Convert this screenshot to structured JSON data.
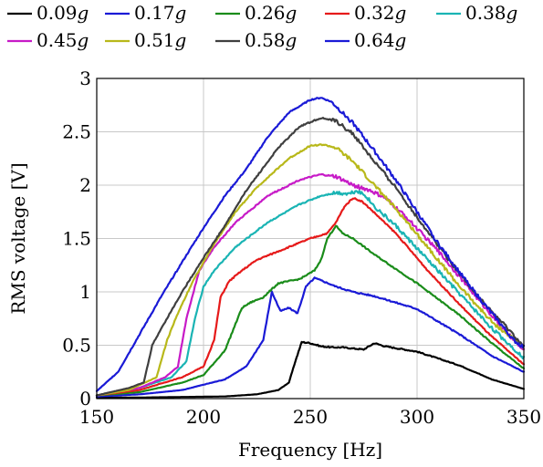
{
  "chart_data": {
    "type": "line",
    "title": "",
    "xlabel": "Frequency [Hz]",
    "ylabel": "RMS voltage [V]",
    "xlim": [
      150,
      350
    ],
    "ylim": [
      0,
      3
    ],
    "x_ticks": [
      150,
      200,
      250,
      300,
      350
    ],
    "y_ticks": [
      0,
      0.5,
      1,
      1.5,
      2,
      2.5,
      3
    ],
    "x_tick_labels": [
      "150",
      "200",
      "250",
      "300",
      "350"
    ],
    "y_tick_labels": [
      "0",
      "0.5",
      "1",
      "1.5",
      "2",
      "2.5",
      "3"
    ],
    "grid": true,
    "legend_position": "top",
    "series": [
      {
        "name": "0.09g",
        "legend_value": "0.09",
        "legend_unit": "g",
        "color": "#000000",
        "x": [
          150,
          170,
          190,
          210,
          225,
          235,
          240,
          243,
          246,
          250,
          255,
          260,
          265,
          270,
          275,
          280,
          285,
          300,
          320,
          335,
          350
        ],
        "y": [
          0.01,
          0.01,
          0.015,
          0.02,
          0.04,
          0.08,
          0.15,
          0.35,
          0.53,
          0.52,
          0.49,
          0.48,
          0.48,
          0.47,
          0.46,
          0.52,
          0.49,
          0.44,
          0.31,
          0.18,
          0.09
        ]
      },
      {
        "name": "0.17g",
        "legend_value": "0.17",
        "legend_unit": "g",
        "color": "#1a1ad6",
        "x": [
          150,
          170,
          190,
          210,
          220,
          228,
          232,
          236,
          240,
          244,
          248,
          252,
          256,
          262,
          270,
          280,
          300,
          320,
          335,
          350
        ],
        "y": [
          0.02,
          0.04,
          0.08,
          0.18,
          0.3,
          0.55,
          1.0,
          0.82,
          0.85,
          0.8,
          1.05,
          1.13,
          1.1,
          1.05,
          1.0,
          0.96,
          0.84,
          0.6,
          0.4,
          0.25
        ]
      },
      {
        "name": "0.26g",
        "legend_value": "0.26",
        "legend_unit": "g",
        "color": "#1a8c1a",
        "x": [
          150,
          170,
          190,
          200,
          210,
          215,
          218,
          222,
          228,
          235,
          245,
          252,
          255,
          258,
          262,
          265,
          270,
          280,
          300,
          320,
          335,
          350
        ],
        "y": [
          0.03,
          0.06,
          0.15,
          0.22,
          0.45,
          0.7,
          0.85,
          0.9,
          0.95,
          1.08,
          1.12,
          1.2,
          1.3,
          1.5,
          1.62,
          1.55,
          1.5,
          1.35,
          1.08,
          0.78,
          0.52,
          0.28
        ]
      },
      {
        "name": "0.32g",
        "legend_value": "0.32",
        "legend_unit": "g",
        "color": "#e61a1a",
        "x": [
          150,
          170,
          190,
          200,
          205,
          208,
          212,
          218,
          225,
          240,
          250,
          258,
          262,
          266,
          270,
          274,
          278,
          290,
          305,
          320,
          335,
          350
        ],
        "y": [
          0.03,
          0.08,
          0.2,
          0.3,
          0.55,
          0.95,
          1.1,
          1.2,
          1.3,
          1.42,
          1.5,
          1.55,
          1.65,
          1.8,
          1.88,
          1.85,
          1.78,
          1.55,
          1.2,
          0.88,
          0.58,
          0.32
        ]
      },
      {
        "name": "0.38g",
        "legend_value": "0.38",
        "legend_unit": "g",
        "color": "#1ab4b4",
        "x": [
          150,
          170,
          185,
          192,
          196,
          200,
          205,
          215,
          230,
          245,
          255,
          262,
          268,
          272,
          276,
          280,
          290,
          305,
          320,
          335,
          350
        ],
        "y": [
          0.03,
          0.1,
          0.2,
          0.35,
          0.75,
          1.05,
          1.2,
          1.42,
          1.65,
          1.82,
          1.9,
          1.93,
          1.92,
          1.95,
          1.9,
          1.8,
          1.62,
          1.3,
          0.98,
          0.66,
          0.38
        ]
      },
      {
        "name": "0.45g",
        "legend_value": "0.45",
        "legend_unit": "g",
        "color": "#c71ac7",
        "x": [
          150,
          170,
          182,
          188,
          192,
          198,
          205,
          215,
          230,
          245,
          255,
          262,
          270,
          278,
          285,
          295,
          310,
          325,
          340,
          350
        ],
        "y": [
          0.03,
          0.1,
          0.2,
          0.3,
          0.75,
          1.2,
          1.42,
          1.65,
          1.9,
          2.05,
          2.1,
          2.08,
          2.0,
          1.95,
          1.88,
          1.7,
          1.38,
          1.02,
          0.66,
          0.45
        ]
      },
      {
        "name": "0.51g",
        "legend_value": "0.51",
        "legend_unit": "g",
        "color": "#b8b81a",
        "x": [
          150,
          165,
          178,
          183,
          188,
          195,
          205,
          215,
          225,
          240,
          250,
          256,
          262,
          270,
          280,
          290,
          305,
          320,
          335,
          350
        ],
        "y": [
          0.03,
          0.08,
          0.2,
          0.55,
          0.8,
          1.1,
          1.45,
          1.75,
          1.98,
          2.25,
          2.37,
          2.38,
          2.35,
          2.22,
          2.0,
          1.78,
          1.42,
          1.05,
          0.72,
          0.48
        ]
      },
      {
        "name": "0.58g",
        "legend_value": "0.58",
        "legend_unit": "g",
        "color": "#3f3f3f",
        "x": [
          150,
          165,
          172,
          176,
          180,
          190,
          200,
          210,
          220,
          235,
          245,
          255,
          262,
          270,
          280,
          290,
          300,
          315,
          330,
          345,
          350
        ],
        "y": [
          0.03,
          0.1,
          0.15,
          0.5,
          0.65,
          1.0,
          1.32,
          1.62,
          1.95,
          2.35,
          2.55,
          2.63,
          2.6,
          2.48,
          2.22,
          1.98,
          1.7,
          1.3,
          0.92,
          0.6,
          0.48
        ]
      },
      {
        "name": "0.64g",
        "legend_value": "0.64",
        "legend_unit": "g",
        "color": "#1a1ad6",
        "x": [
          150,
          160,
          170,
          180,
          190,
          200,
          210,
          220,
          230,
          240,
          250,
          255,
          260,
          270,
          280,
          290,
          300,
          310,
          320,
          330,
          340,
          345,
          350
        ],
        "y": [
          0.07,
          0.25,
          0.6,
          0.95,
          1.28,
          1.6,
          1.9,
          2.15,
          2.45,
          2.68,
          2.8,
          2.82,
          2.78,
          2.58,
          2.32,
          2.05,
          1.75,
          1.45,
          1.18,
          0.92,
          0.68,
          0.55,
          0.48
        ]
      }
    ]
  }
}
